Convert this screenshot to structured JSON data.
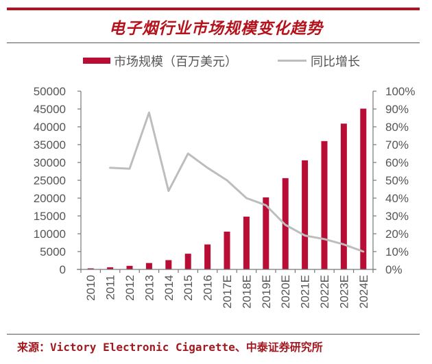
{
  "title": "电子烟行业市场规模变化趋势",
  "legend": {
    "bar_label": "市场规模（百万美元）",
    "line_label": "同比增长"
  },
  "source": "来源：Victory Electronic Cigarette、中泰证券研究所",
  "colors": {
    "bar": "#b80e35",
    "line": "#bdbdbd",
    "title": "#b5121b",
    "rule": "#b0121f"
  },
  "chart_data": {
    "type": "bar+line",
    "title": "电子烟行业市场规模变化趋势",
    "categories": [
      "2010",
      "2011",
      "2012",
      "2013",
      "2014",
      "2015",
      "2016",
      "2017E",
      "2018E",
      "2019E",
      "2020E",
      "2021E",
      "2022E",
      "2023E",
      "2024E"
    ],
    "series": [
      {
        "name": "市场规模（百万美元）",
        "type": "bar",
        "axis": "left",
        "values": [
          300,
          600,
          1000,
          1800,
          2600,
          4400,
          7000,
          10600,
          14800,
          20200,
          25600,
          30600,
          36000,
          40900,
          45100
        ]
      },
      {
        "name": "同比增长",
        "type": "line",
        "axis": "right",
        "values": [
          null,
          0.57,
          0.565,
          0.88,
          0.44,
          0.65,
          0.57,
          0.5,
          0.4,
          0.36,
          0.25,
          0.19,
          0.17,
          0.14,
          0.1
        ]
      }
    ],
    "left_axis": {
      "ylim": [
        0,
        50000
      ],
      "ticks": [
        "0",
        "5000",
        "10000",
        "15000",
        "20000",
        "25000",
        "30000",
        "35000",
        "40000",
        "45000",
        "50000"
      ]
    },
    "right_axis": {
      "ylim": [
        0,
        1
      ],
      "ticks": [
        "0%",
        "10%",
        "20%",
        "30%",
        "40%",
        "50%",
        "60%",
        "70%",
        "80%",
        "90%",
        "100%"
      ]
    },
    "xlabel": "",
    "ylabel": "",
    "grid": false,
    "legend_position": "top"
  }
}
